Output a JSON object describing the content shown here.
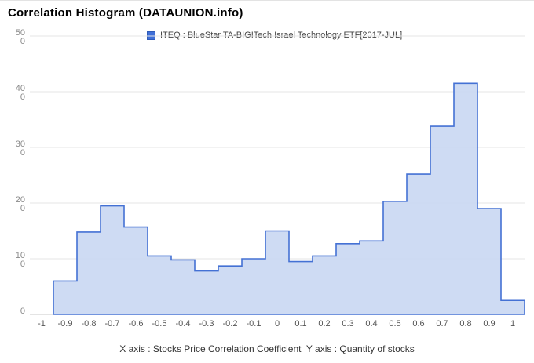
{
  "chart_data": {
    "type": "area",
    "subtype": "step-histogram",
    "title": "Correlation Histogram (DATAUNION.info)",
    "legend_label": "ITEQ : BlueStar TA-BIGITech Israel Technology ETF[2017-JUL]",
    "caption": "X axis : Stocks Price Correlation Coefficient  Y axis : Quantity of stocks",
    "xlabel": "Stocks Price Correlation Coefficient",
    "ylabel": "Quantity of stocks",
    "x": [
      -1,
      -0.9,
      -0.8,
      -0.7,
      -0.6,
      -0.5,
      -0.4,
      -0.3,
      -0.2,
      -0.1,
      0,
      0.1,
      0.2,
      0.3,
      0.4,
      0.5,
      0.6,
      0.7,
      0.8,
      0.9,
      1
    ],
    "x_tick_labels": [
      "-1",
      "-0.9",
      "-0.8",
      "-0.7",
      "-0.6",
      "-0.5",
      "-0.4",
      "-0.3",
      "-0.2",
      "-0.1",
      "0",
      "0.1",
      "0.2",
      "0.3",
      "0.4",
      "0.5",
      "0.6",
      "0.7",
      "0.8",
      "0.9",
      "1"
    ],
    "values": [
      0,
      60,
      148,
      195,
      157,
      105,
      98,
      78,
      87,
      100,
      150,
      95,
      105,
      127,
      132,
      203,
      252,
      338,
      415,
      190,
      25
    ],
    "bin_width": 0.1,
    "ylim": [
      0,
      500
    ],
    "y_ticks": [
      0,
      100,
      200,
      300,
      400,
      500
    ],
    "y_tick_labels": [
      "0",
      "100",
      "200",
      "300",
      "400",
      "500"
    ],
    "grid": true,
    "legend_position": "top",
    "colors": {
      "stroke": "#4471d4",
      "fill": "#c9d7f2",
      "legend_swatch": "#3f6fd8",
      "gridline": "#e4e4e4",
      "axis_line": "#c9c9c9",
      "y_tick_text": "#8a8a8a",
      "x_tick_text": "#555555"
    }
  }
}
